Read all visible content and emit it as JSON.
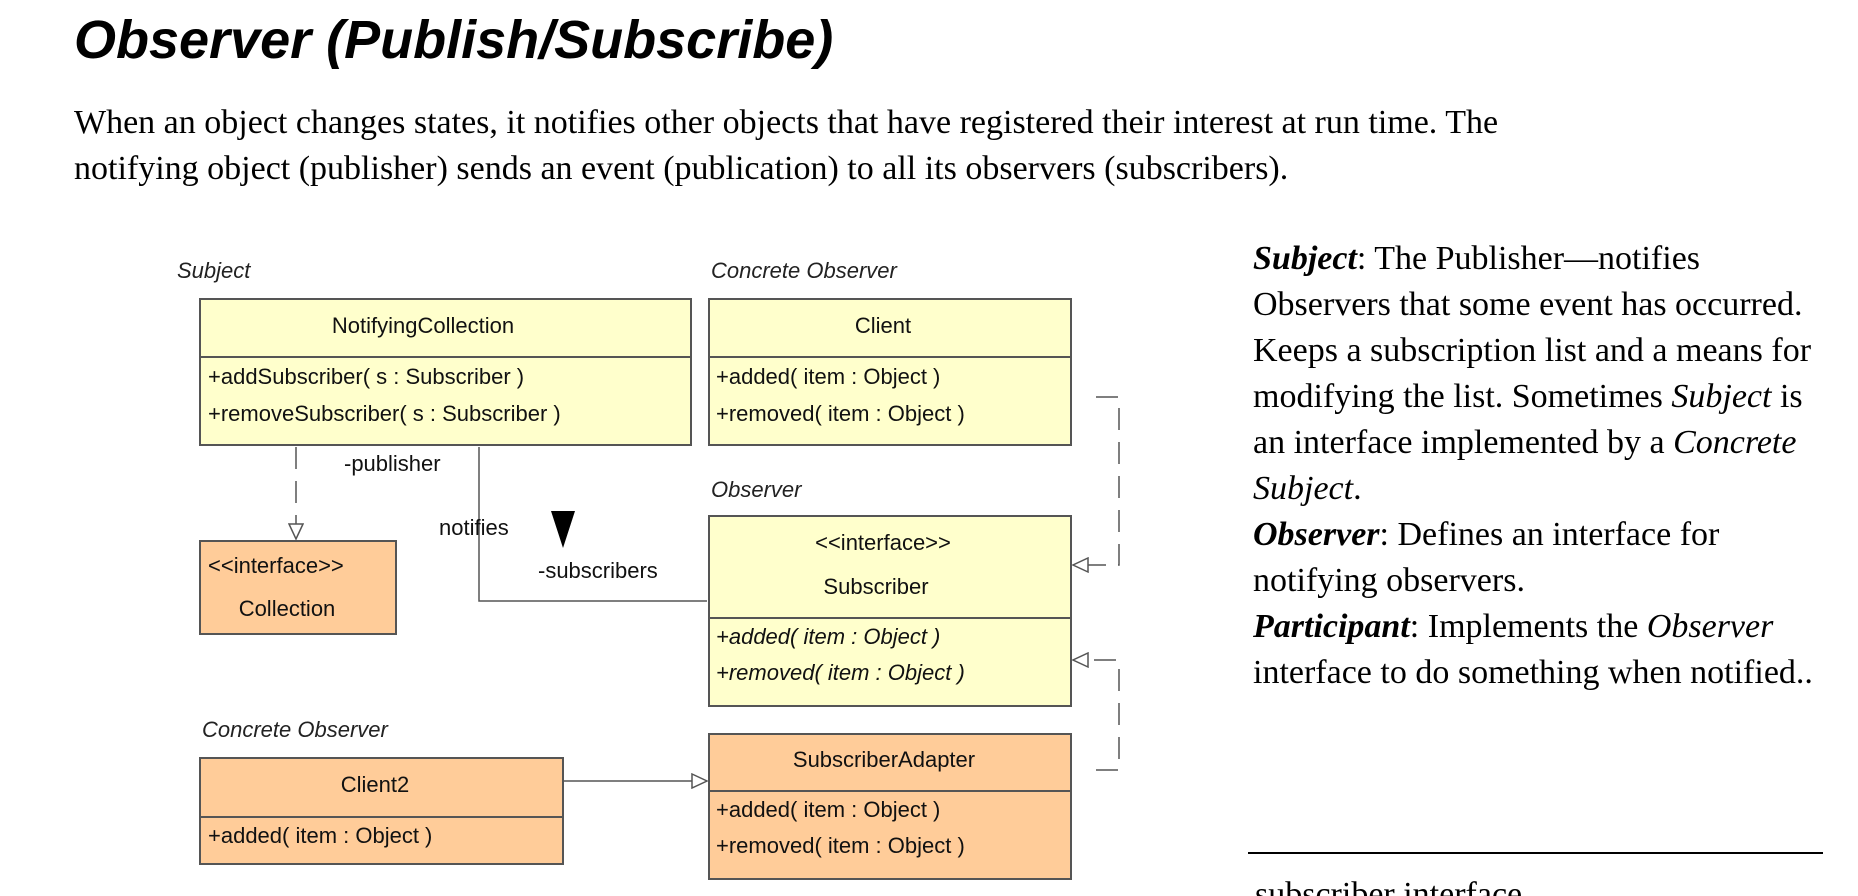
{
  "title": "Observer (Publish/Subscribe)",
  "intro": {
    "line1": "When an object changes states, it notifies other objects that have registered their interest at run time. The",
    "line2": "notifying object (publisher) sends an event (publication) to all its observers (subscribers)."
  },
  "diagram": {
    "stereotypes": {
      "subject": "Subject",
      "concrete_observer_top": "Concrete Observer",
      "observer": "Observer",
      "concrete_observer_bottom": "Concrete Observer"
    },
    "classes": {
      "notifying_collection": {
        "name": "NotifyingCollection",
        "ops": [
          "+addSubscriber( s : Subscriber )",
          "+removeSubscriber( s : Subscriber )"
        ]
      },
      "client": {
        "name": "Client",
        "ops": [
          "+added( item : Object )",
          "+removed( item : Object )"
        ]
      },
      "collection": {
        "stereotype": "<<interface>>",
        "name": "Collection"
      },
      "subscriber": {
        "stereotype": "<<interface>>",
        "name": "Subscriber",
        "ops": [
          "+added( item : Object )",
          "+removed( item : Object )"
        ]
      },
      "client2": {
        "name": "Client2",
        "ops": [
          "+added( item : Object )"
        ]
      },
      "subscriber_adapter": {
        "name": "SubscriberAdapter",
        "ops": [
          "+added( item : Object )",
          "+removed( item : Object )"
        ]
      }
    },
    "labels": {
      "publisher": "-publisher",
      "notifies": "notifies",
      "subscribers": "-subscribers"
    },
    "colors": {
      "yellow": "#ffffcc",
      "orange": "#ffcc99",
      "border": "#555555"
    }
  },
  "description": {
    "subject_term": "Subject",
    "subject_text_1": ": The Publisher—notifies Observers that some event has occurred. Keeps a subscription list and a means for modifying the list. Sometimes ",
    "subject_inline": "Subject",
    "subject_text_2": " is an interface implemented by a ",
    "concrete_subject": "Concrete Subject",
    "subject_end": ".",
    "observer_term": "Observer",
    "observer_text": ": Defines an interface for notifying observers.",
    "participant_term": "Participant",
    "participant_text_1": ": Implements the ",
    "participant_inline": "Observer",
    "participant_text_2": " interface to do something when notified.."
  },
  "cut_off_text": "subscriber interface"
}
